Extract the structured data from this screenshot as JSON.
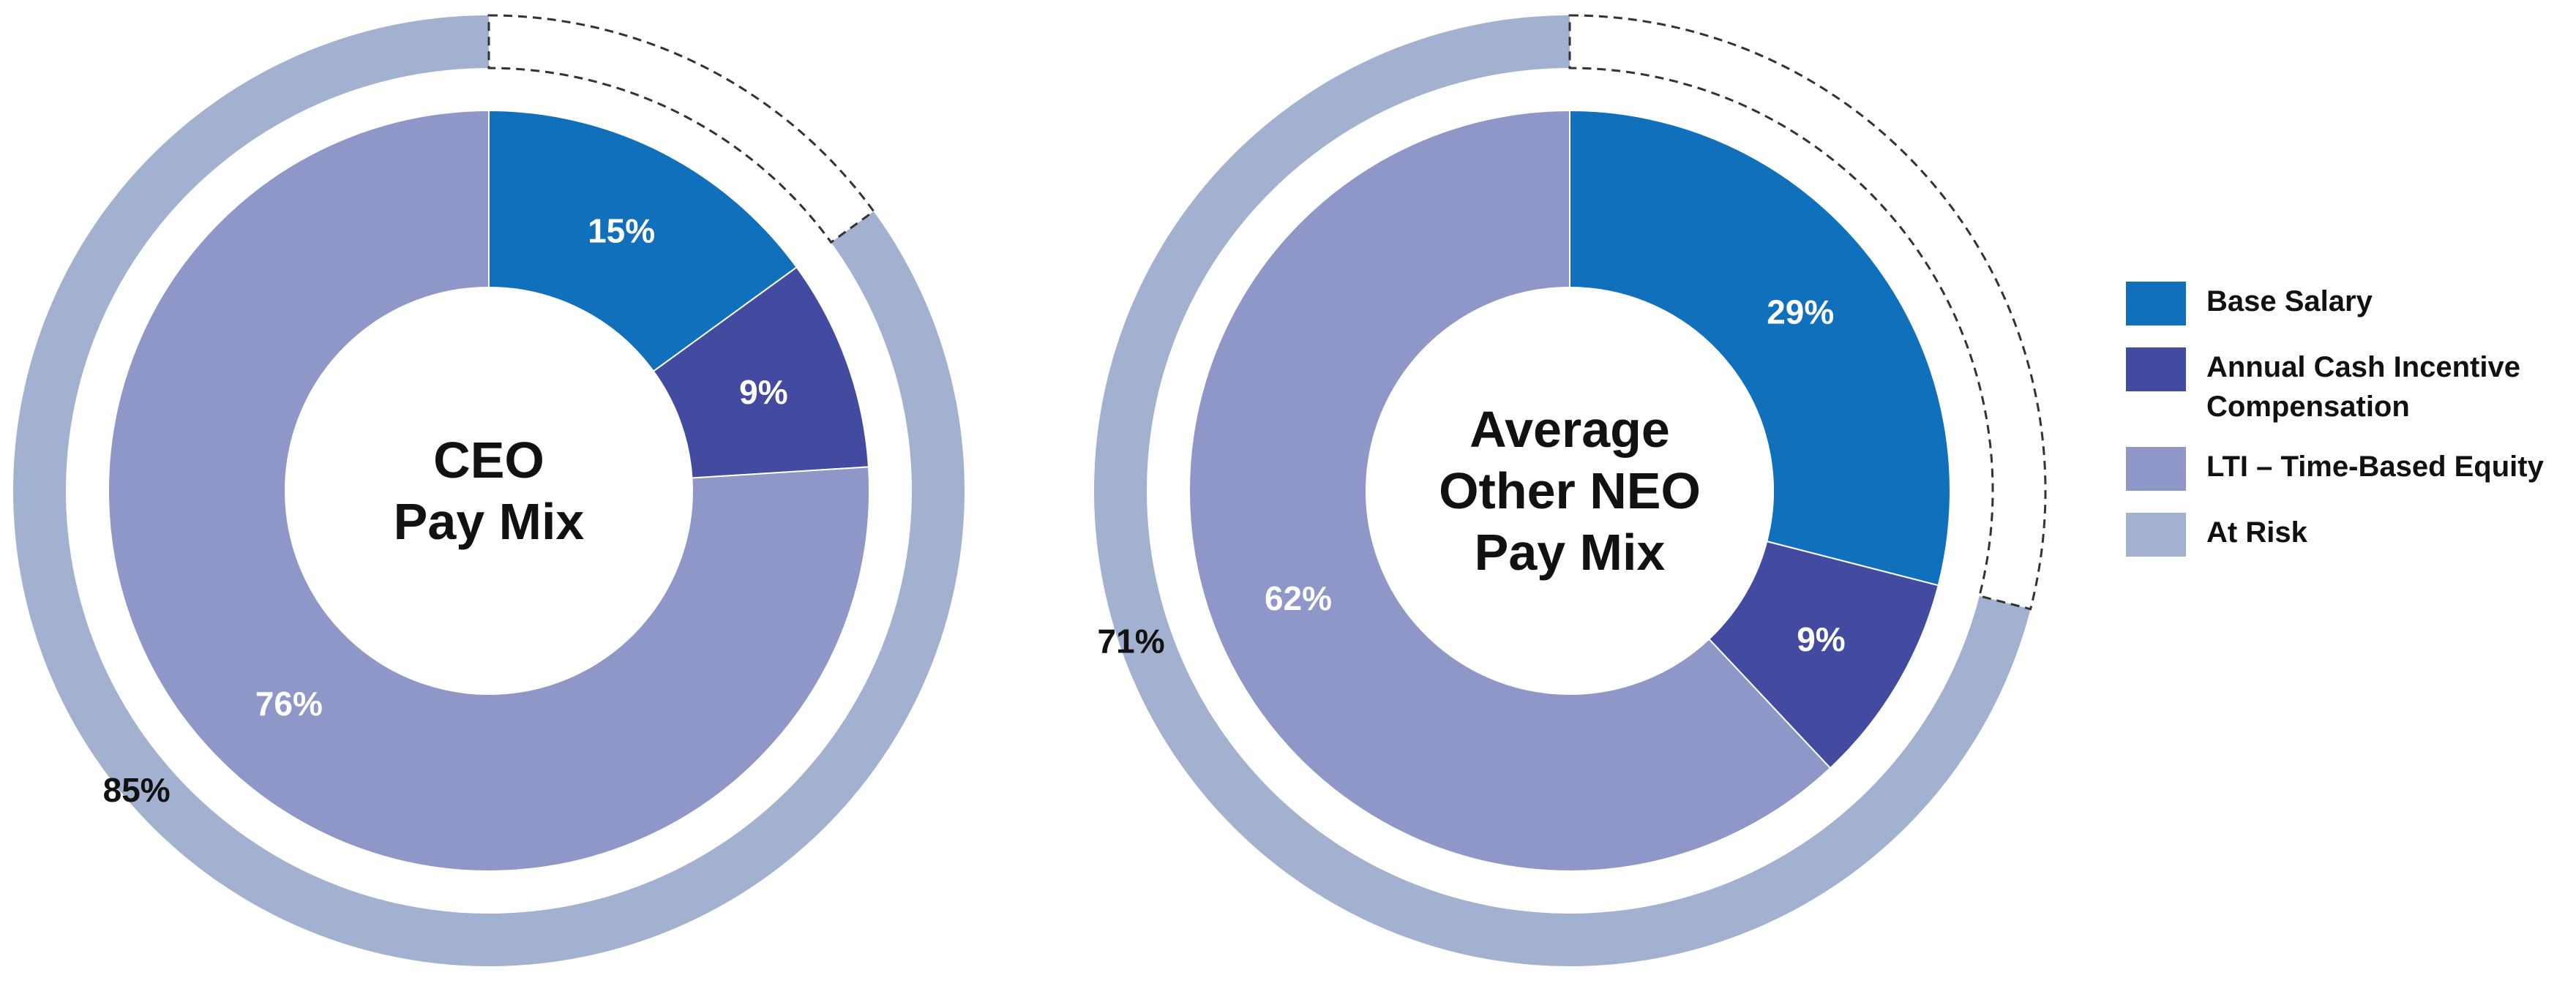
{
  "colors": {
    "base_salary": "#1170bc",
    "annual_cash": "#424ba0",
    "lti": "#8f96c8",
    "at_risk": "#a1b1cf",
    "dash": "#333333"
  },
  "legend": [
    {
      "label": "Base Salary",
      "color": "#1170bc"
    },
    {
      "label": "Annual Cash Incentive Compensation",
      "color": "#424ba0"
    },
    {
      "label": "LTI – Time-Based Equity",
      "color": "#8f96c8"
    },
    {
      "label": "At Risk",
      "color": "#a1b1cf"
    }
  ],
  "chart_data": [
    {
      "type": "pie",
      "title_lines": [
        "CEO",
        "Pay Mix"
      ],
      "categories": [
        "Base Salary",
        "Annual Cash Incentive Compensation",
        "LTI – Time-Based Equity"
      ],
      "values": [
        15,
        9,
        76
      ],
      "labels": [
        "15%",
        "9%",
        "76%"
      ],
      "at_risk": {
        "value": 85,
        "label": "85%"
      }
    },
    {
      "type": "pie",
      "title_lines": [
        "Average",
        "Other NEO",
        "Pay Mix"
      ],
      "categories": [
        "Base Salary",
        "Annual Cash Incentive Compensation",
        "LTI – Time-Based Equity"
      ],
      "values": [
        29,
        9,
        62
      ],
      "labels": [
        "29%",
        "9%",
        "62%"
      ],
      "at_risk": {
        "value": 71,
        "label": "71%"
      }
    }
  ]
}
